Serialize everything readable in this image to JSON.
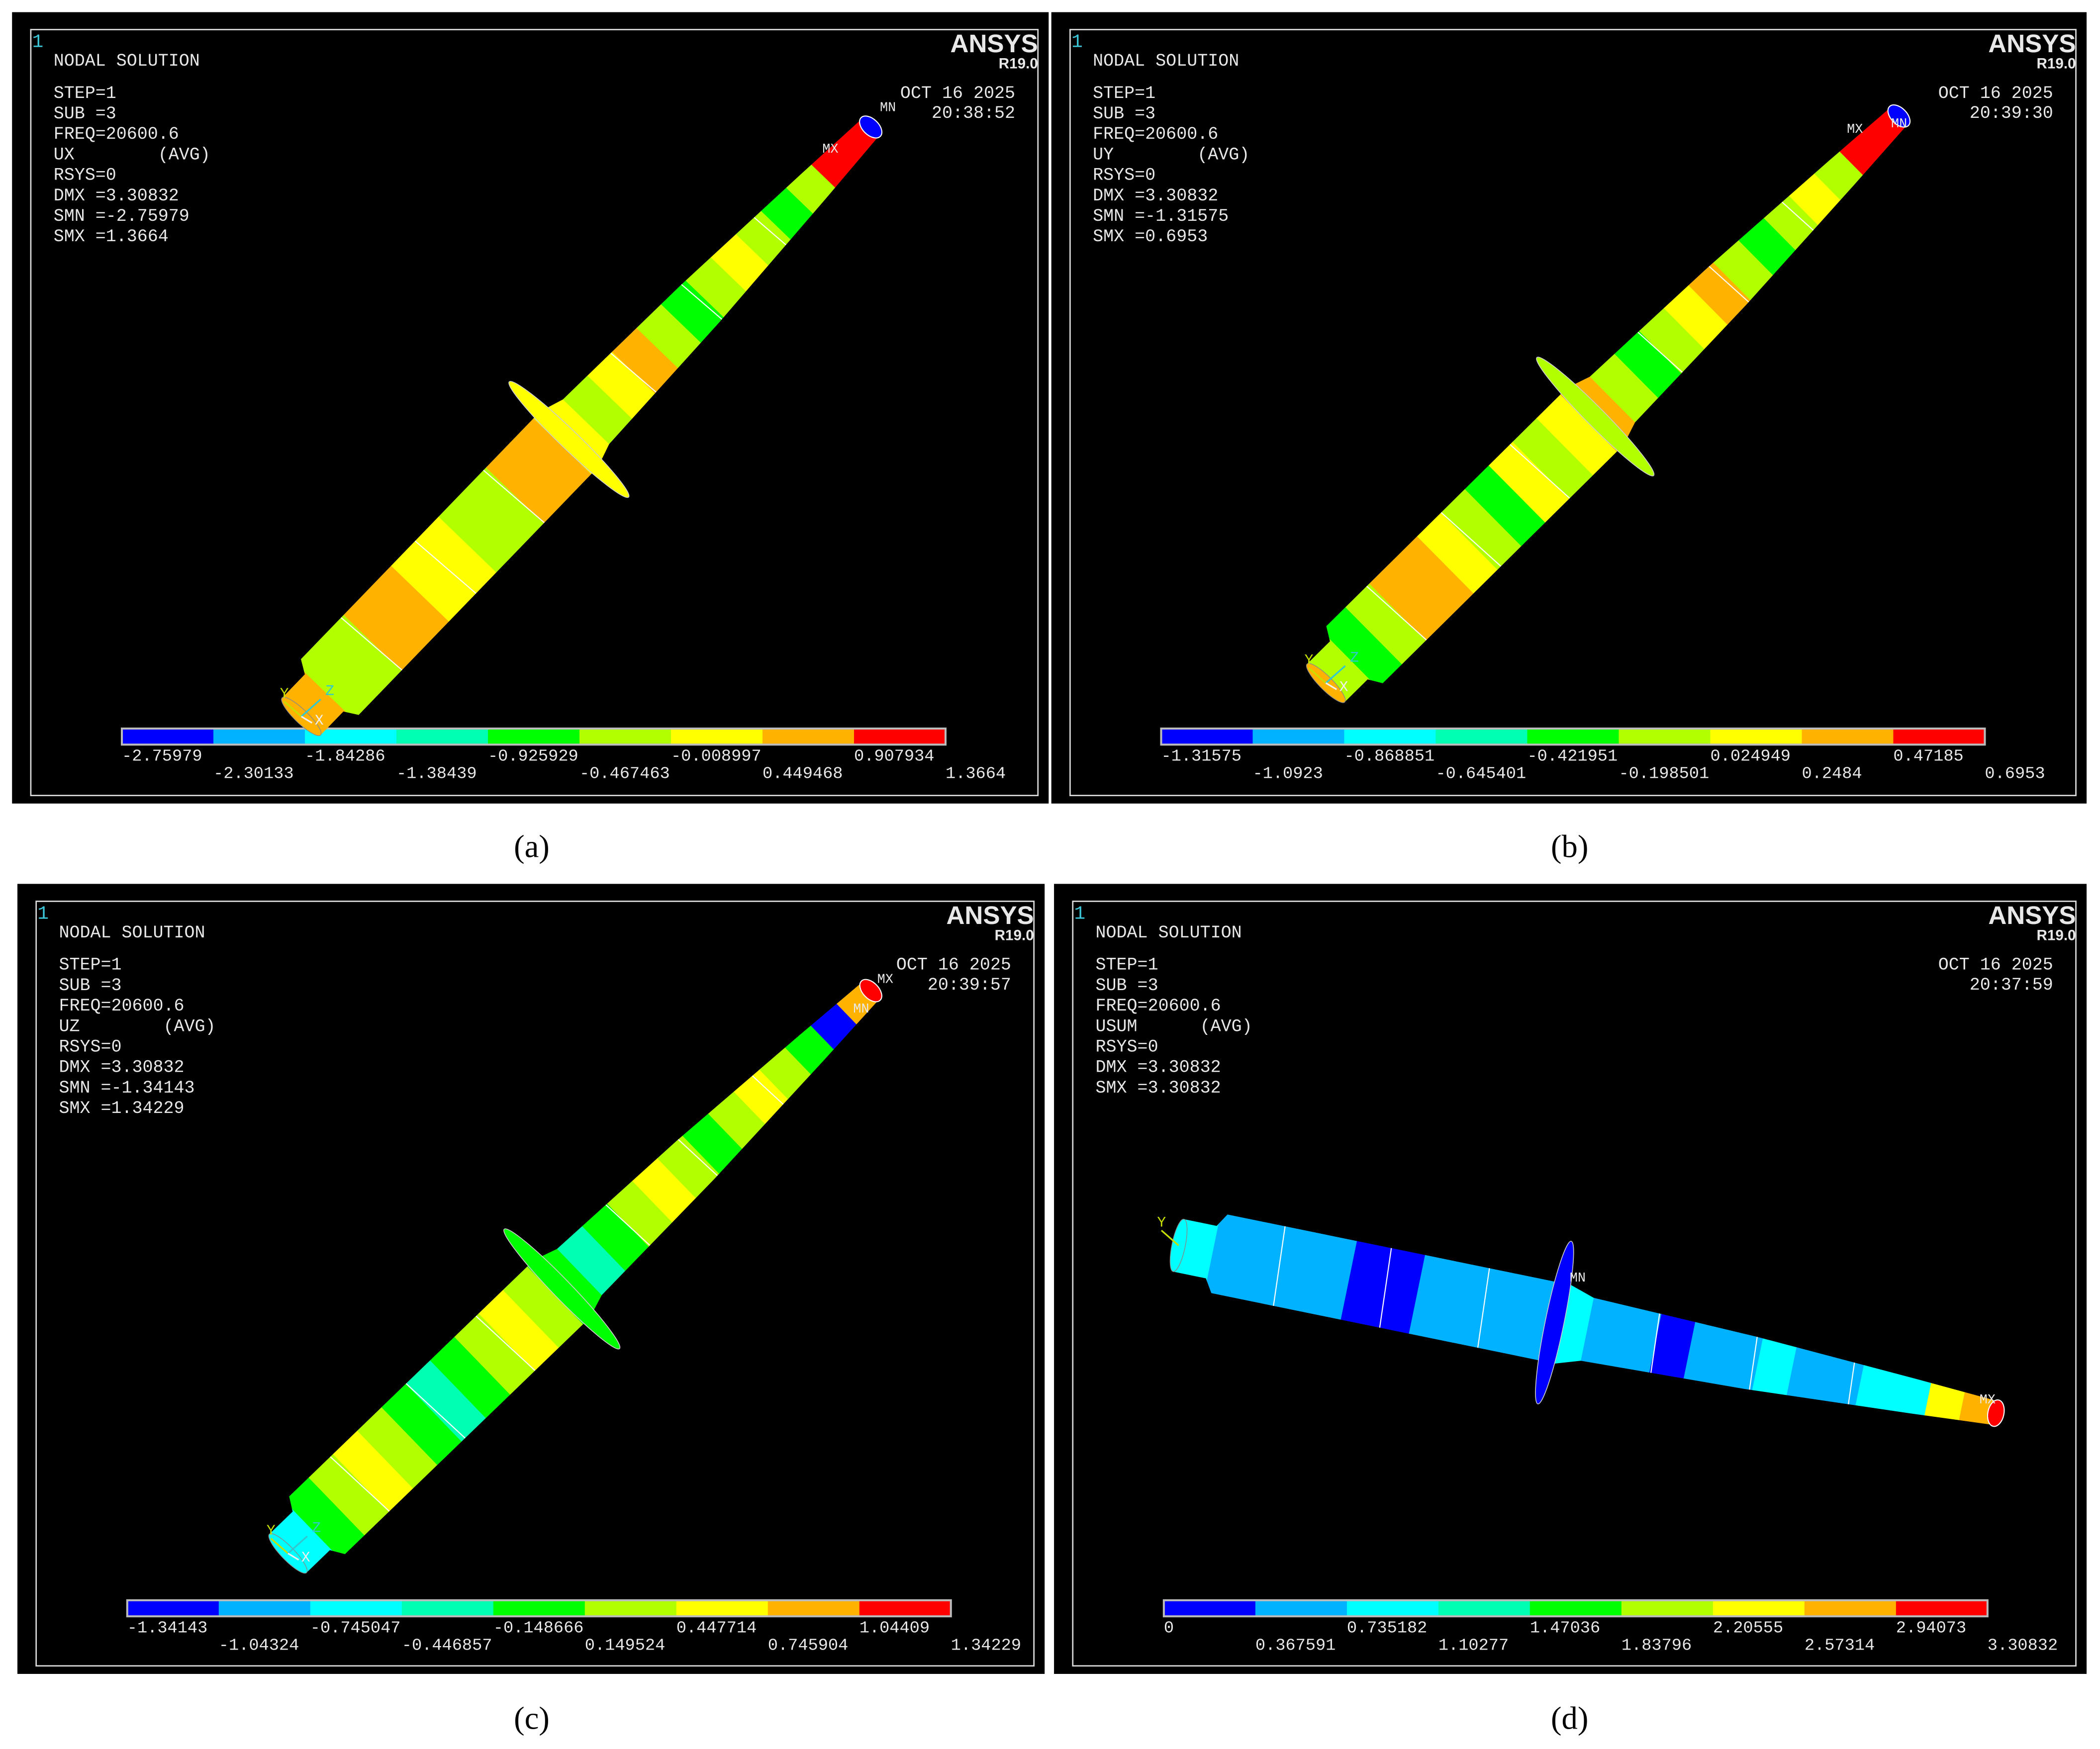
{
  "colors": [
    "#0000ff",
    "#00b2ff",
    "#00ffff",
    "#00ffb2",
    "#00ff00",
    "#b2ff00",
    "#ffff00",
    "#ffb200",
    "#ff0000"
  ],
  "panels": [
    {
      "window_number": "1",
      "title": "NODAL SOLUTION",
      "info": [
        "STEP=1",
        "SUB =3",
        "FREQ=20600.6",
        "UX        (AVG)",
        "RSYS=0",
        "DMX =3.30832",
        "SMN =-2.75979",
        "SMX =1.3664"
      ],
      "brand": "ANSYS",
      "version": "R19.0",
      "date": "OCT 16 2025",
      "time": "20:38:52",
      "legend": [
        "-2.75979",
        "-2.30133",
        "-1.84286",
        "-1.38439",
        "-0.925929",
        "-0.467463",
        "-0.008997",
        "0.449468",
        "0.907934",
        "1.3664"
      ],
      "markers": [
        "MX",
        "MN"
      ],
      "axes": [
        "Y",
        "Z",
        "X"
      ],
      "caption": "(a)"
    },
    {
      "window_number": "1",
      "title": "NODAL SOLUTION",
      "info": [
        "STEP=1",
        "SUB =3",
        "FREQ=20600.6",
        "UY        (AVG)",
        "RSYS=0",
        "DMX =3.30832",
        "SMN =-1.31575",
        "SMX =0.6953"
      ],
      "brand": "ANSYS",
      "version": "R19.0",
      "date": "OCT 16 2025",
      "time": "20:39:30",
      "legend": [
        "-1.31575",
        "-1.0923",
        "-0.868851",
        "-0.645401",
        "-0.421951",
        "-0.198501",
        "0.024949",
        "0.2484",
        "0.47185",
        "0.6953"
      ],
      "markers": [
        "MX",
        "MN"
      ],
      "axes": [
        "Y",
        "Z",
        "X"
      ],
      "caption": "(b)"
    },
    {
      "window_number": "1",
      "title": "NODAL SOLUTION",
      "info": [
        "STEP=1",
        "SUB =3",
        "FREQ=20600.6",
        "UZ        (AVG)",
        "RSYS=0",
        "DMX =3.30832",
        "SMN =-1.34143",
        "SMX =1.34229"
      ],
      "brand": "ANSYS",
      "version": "R19.0",
      "date": "OCT 16 2025",
      "time": "20:39:57",
      "legend": [
        "-1.34143",
        "-1.04324",
        "-0.745047",
        "-0.446857",
        "-0.148666",
        "0.149524",
        "0.447714",
        "0.745904",
        "1.04409",
        "1.34229"
      ],
      "markers": [
        "MX",
        "MN"
      ],
      "axes": [
        "Y",
        "Z",
        "X"
      ],
      "caption": "(c)"
    },
    {
      "window_number": "1",
      "title": "NODAL SOLUTION",
      "info": [
        "STEP=1",
        "SUB =3",
        "FREQ=20600.6",
        "USUM      (AVG)",
        "RSYS=0",
        "DMX =3.30832",
        "SMX =3.30832"
      ],
      "brand": "ANSYS",
      "version": "R19.0",
      "date": "OCT 16 2025",
      "time": "20:37:59",
      "legend": [
        "0",
        "0.367591",
        "0.735182",
        "1.10277",
        "1.47036",
        "1.83796",
        "2.20555",
        "2.57314",
        "2.94073",
        "3.30832"
      ],
      "markers": [
        "MX",
        "MN"
      ],
      "axes": [
        "Y"
      ],
      "caption": "(d)"
    }
  ]
}
